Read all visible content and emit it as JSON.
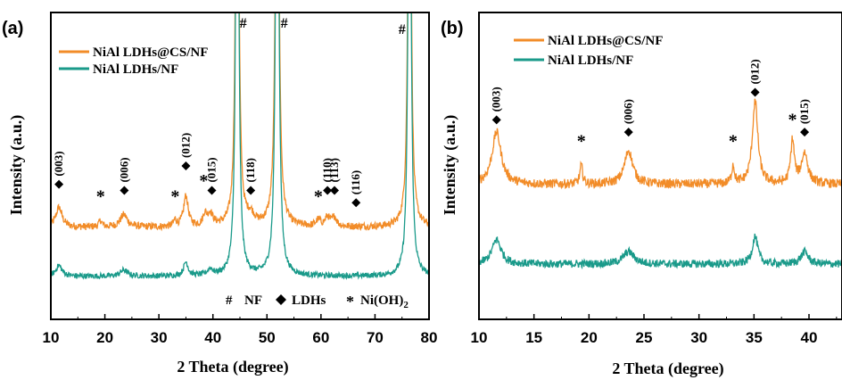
{
  "colors": {
    "orange": "#f28c28",
    "teal": "#1a9a8a",
    "axis": "#000000"
  },
  "chart_data": [
    {
      "panel_label": "(a)",
      "type": "line",
      "xlabel": "2 Theta (degree)",
      "ylabel": "Intensity (a.u.)",
      "xlim": [
        10,
        80
      ],
      "x_ticks": [
        10,
        20,
        30,
        40,
        50,
        60,
        70,
        80
      ],
      "y_units": "arbitrary (a.u.)",
      "ylim": [
        0,
        100
      ],
      "grid": false,
      "legend_position": "top-left",
      "series": [
        {
          "name": "NiAl LDHs@CS/NF",
          "color": "#f28c28",
          "baseline": 30,
          "noise": 1.2,
          "peaks": [
            {
              "x": 11.5,
              "h": 6.5,
              "w": 0.7
            },
            {
              "x": 19.2,
              "h": 2.0,
              "w": 0.35
            },
            {
              "x": 23.5,
              "h": 4.0,
              "w": 0.8
            },
            {
              "x": 33.0,
              "h": 2.0,
              "w": 0.35
            },
            {
              "x": 35.0,
              "h": 10.0,
              "w": 0.5
            },
            {
              "x": 38.5,
              "h": 3.5,
              "w": 0.4
            },
            {
              "x": 39.5,
              "h": 4.0,
              "w": 0.6
            },
            {
              "x": 44.5,
              "h": 210,
              "w": 0.28
            },
            {
              "x": 47.0,
              "h": 3.0,
              "w": 0.8
            },
            {
              "x": 51.9,
              "h": 210,
              "w": 0.3
            },
            {
              "x": 59.5,
              "h": 2.0,
              "w": 0.5
            },
            {
              "x": 61.2,
              "h": 3.0,
              "w": 0.5
            },
            {
              "x": 62.5,
              "h": 3.0,
              "w": 0.5
            },
            {
              "x": 76.4,
              "h": 200,
              "w": 0.28
            }
          ]
        },
        {
          "name": "NiAl LDHs/NF",
          "color": "#1a9a8a",
          "baseline": 14,
          "noise": 0.9,
          "peaks": [
            {
              "x": 11.5,
              "h": 3.5,
              "w": 0.7
            },
            {
              "x": 23.5,
              "h": 2.0,
              "w": 0.8
            },
            {
              "x": 35.0,
              "h": 4.5,
              "w": 0.5
            },
            {
              "x": 39.5,
              "h": 2.0,
              "w": 0.6
            },
            {
              "x": 44.5,
              "h": 210,
              "w": 0.28
            },
            {
              "x": 51.9,
              "h": 210,
              "w": 0.3
            },
            {
              "x": 76.4,
              "h": 200,
              "w": 0.28
            }
          ]
        }
      ],
      "annotations": [
        {
          "type": "hash",
          "x": 45.6,
          "y": 95
        },
        {
          "type": "hash",
          "x": 53.2,
          "y": 95
        },
        {
          "type": "hash",
          "x": 75.0,
          "y": 93
        },
        {
          "type": "diamond",
          "x": 11.5,
          "y": 44,
          "label": "(003)"
        },
        {
          "type": "diamond",
          "x": 23.6,
          "y": 42,
          "label": "(006)"
        },
        {
          "type": "diamond",
          "x": 35.0,
          "y": 50,
          "label": "(012)"
        },
        {
          "type": "diamond",
          "x": 39.8,
          "y": 42,
          "label": "(015)"
        },
        {
          "type": "diamond",
          "x": 47.0,
          "y": 42,
          "label": "(118)"
        },
        {
          "type": "diamond",
          "x": 61.2,
          "y": 42,
          "label": "(110)"
        },
        {
          "type": "diamond",
          "x": 62.5,
          "y": 42,
          "label": "(113)"
        },
        {
          "type": "diamond",
          "x": 66.5,
          "y": 38,
          "label": "(116)"
        },
        {
          "type": "star",
          "x": 19.2,
          "y": 40
        },
        {
          "type": "star",
          "x": 33.0,
          "y": 40
        },
        {
          "type": "star",
          "x": 38.3,
          "y": 45
        },
        {
          "type": "star",
          "x": 59.5,
          "y": 40
        }
      ],
      "phase_legend": {
        "hash_label": "NF",
        "diamond_label": "LDHs",
        "star_label_main": "Ni(OH)",
        "star_label_sub": "2"
      }
    },
    {
      "panel_label": "(b)",
      "type": "line",
      "xlabel": "2 Theta (degree)",
      "ylabel": "Intensity (a.u.)",
      "xlim": [
        10,
        43
      ],
      "x_ticks": [
        10,
        15,
        20,
        25,
        30,
        35,
        40
      ],
      "y_units": "arbitrary (a.u.)",
      "ylim": [
        0,
        100
      ],
      "grid": false,
      "legend_position": "top-left",
      "series": [
        {
          "name": "NiAl LDHs@CS/NF",
          "color": "#f28c28",
          "baseline": 44,
          "noise": 1.5,
          "peaks": [
            {
              "x": 11.6,
              "h": 17,
              "w": 0.5
            },
            {
              "x": 19.3,
              "h": 6,
              "w": 0.15
            },
            {
              "x": 23.6,
              "h": 11,
              "w": 0.45
            },
            {
              "x": 33.1,
              "h": 6,
              "w": 0.15
            },
            {
              "x": 35.1,
              "h": 27,
              "w": 0.3
            },
            {
              "x": 38.5,
              "h": 14,
              "w": 0.2
            },
            {
              "x": 39.6,
              "h": 10,
              "w": 0.35
            }
          ]
        },
        {
          "name": "NiAl LDHs/NF",
          "color": "#1a9a8a",
          "baseline": 18,
          "noise": 1.3,
          "peaks": [
            {
              "x": 11.6,
              "h": 8,
              "w": 0.5
            },
            {
              "x": 23.6,
              "h": 4,
              "w": 0.6
            },
            {
              "x": 35.1,
              "h": 9,
              "w": 0.3
            },
            {
              "x": 39.6,
              "h": 4,
              "w": 0.4
            }
          ]
        }
      ],
      "annotations": [
        {
          "type": "diamond",
          "x": 11.6,
          "y": 65,
          "label": "(003)"
        },
        {
          "type": "diamond",
          "x": 23.6,
          "y": 61,
          "label": "(006)"
        },
        {
          "type": "diamond",
          "x": 35.1,
          "y": 74,
          "label": "(012)"
        },
        {
          "type": "diamond",
          "x": 39.6,
          "y": 61,
          "label": "(015)"
        },
        {
          "type": "star",
          "x": 19.3,
          "y": 58
        },
        {
          "type": "star",
          "x": 33.1,
          "y": 58
        },
        {
          "type": "star",
          "x": 38.5,
          "y": 65
        }
      ]
    }
  ]
}
